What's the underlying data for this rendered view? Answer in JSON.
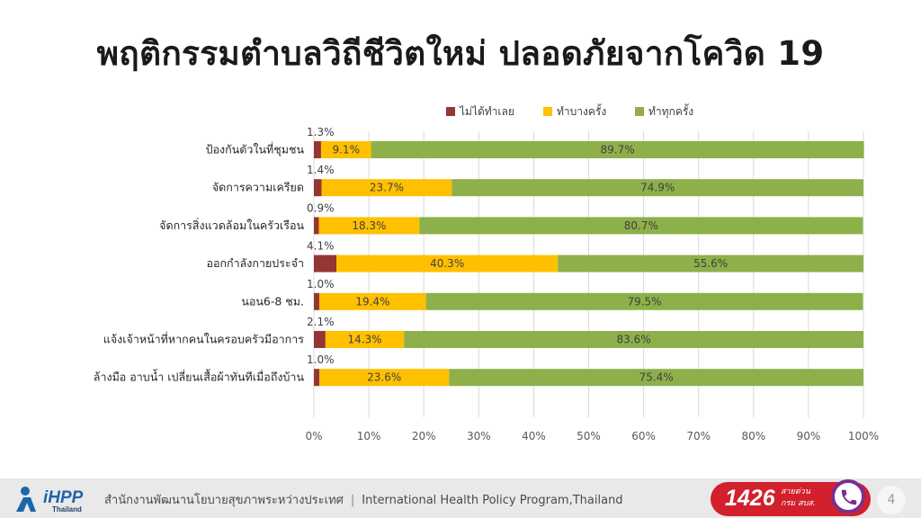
{
  "slide": {
    "title": "พฤติกรรมตำบลวิถีชีวิตใหม่ ปลอดภัยจากโควิด 19",
    "page_number": "4"
  },
  "footer": {
    "logo_text": "iHPP",
    "logo_sub": "Thailand",
    "org_thai": "สำนักงานพัฒนานโยบายสุขภาพระหว่างประเทศ",
    "separator": "|",
    "org_english": "International Health Policy Program,Thailand",
    "hotline_number": "1426",
    "hotline_label": "สายด่วน กรม สบส."
  },
  "colors": {
    "never": "#943634",
    "sometimes": "#ffc000",
    "always": "#8db04a",
    "grid": "#d9d9d9"
  },
  "chart_data": {
    "type": "bar",
    "orientation": "horizontal",
    "stacked": "percent",
    "categories": [
      "ป้องกันตัวในที่ชุมชน",
      "จัดการความเครียด",
      "จัดการสิ่งแวดล้อมในครัวเรือน",
      "ออกกำลังกายประจำ",
      "นอน6-8 ชม.",
      "แจ้งเจ้าหน้าที่หากคนในครอบครัวมีอาการ",
      "ล้างมือ อาบน้ำ เปลี่ยนเสื้อผ้าทันทีเมื่อถึงบ้าน"
    ],
    "series": [
      {
        "name": "ไม่ได้ทำเลย",
        "values": [
          1.3,
          1.4,
          0.9,
          4.1,
          1.0,
          2.1,
          1.0
        ],
        "labels": [
          "1.3%",
          "1.4%",
          "0.9%",
          "4.1%",
          "1.0%",
          "2.1%",
          "1.0%"
        ]
      },
      {
        "name": "ทำบางครั้ง",
        "values": [
          9.1,
          23.7,
          18.3,
          40.3,
          19.4,
          14.3,
          23.6
        ],
        "labels": [
          "9.1%",
          "23.7%",
          "18.3%",
          "40.3%",
          "19.4%",
          "14.3%",
          "23.6%"
        ]
      },
      {
        "name": "ทำทุกครั้ง",
        "values": [
          89.7,
          74.9,
          80.7,
          55.6,
          79.5,
          83.6,
          75.4
        ],
        "labels": [
          "89.7%",
          "74.9%",
          "80.7%",
          "55.6%",
          "79.5%",
          "83.6%",
          "75.4%"
        ]
      }
    ],
    "xlim": [
      0,
      100
    ],
    "xticks": [
      0,
      10,
      20,
      30,
      40,
      50,
      60,
      70,
      80,
      90,
      100
    ],
    "xtick_labels": [
      "0%",
      "10%",
      "20%",
      "30%",
      "40%",
      "50%",
      "60%",
      "70%",
      "80%",
      "90%",
      "100%"
    ],
    "grid": true,
    "legend": "top"
  }
}
